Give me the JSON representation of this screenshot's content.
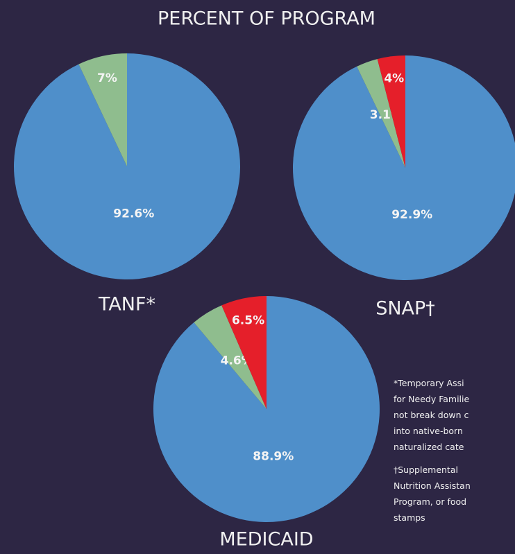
{
  "title": "PERCENT OF PROGRAM",
  "chart_data": [
    {
      "type": "pie",
      "title": "TANF*",
      "values": [
        92.6,
        7
      ],
      "value_labels": [
        "92.6%",
        "7%"
      ],
      "colors": [
        "#4f8fca",
        "#8fbd8e"
      ]
    },
    {
      "type": "pie",
      "title": "SNAP†",
      "values": [
        92.9,
        3.1,
        4
      ],
      "value_labels": [
        "92.9%",
        "3.1%",
        "4%"
      ],
      "colors": [
        "#4f8fca",
        "#8fbd8e",
        "#e51f2a"
      ]
    },
    {
      "type": "pie",
      "title": "MEDICAID",
      "values": [
        88.9,
        4.6,
        6.5
      ],
      "value_labels": [
        "88.9%",
        "4.6%",
        "6.5%"
      ],
      "colors": [
        "#4f8fca",
        "#8fbd8e",
        "#e51f2a"
      ]
    }
  ],
  "footnotes": [
    [
      "*Temporary Assi",
      "for Needy Familie",
      "not break down c",
      "into native-born",
      "naturalized cate"
    ],
    [
      "†Supplemental",
      "Nutrition Assistan",
      "Program, or food",
      "stamps"
    ]
  ]
}
